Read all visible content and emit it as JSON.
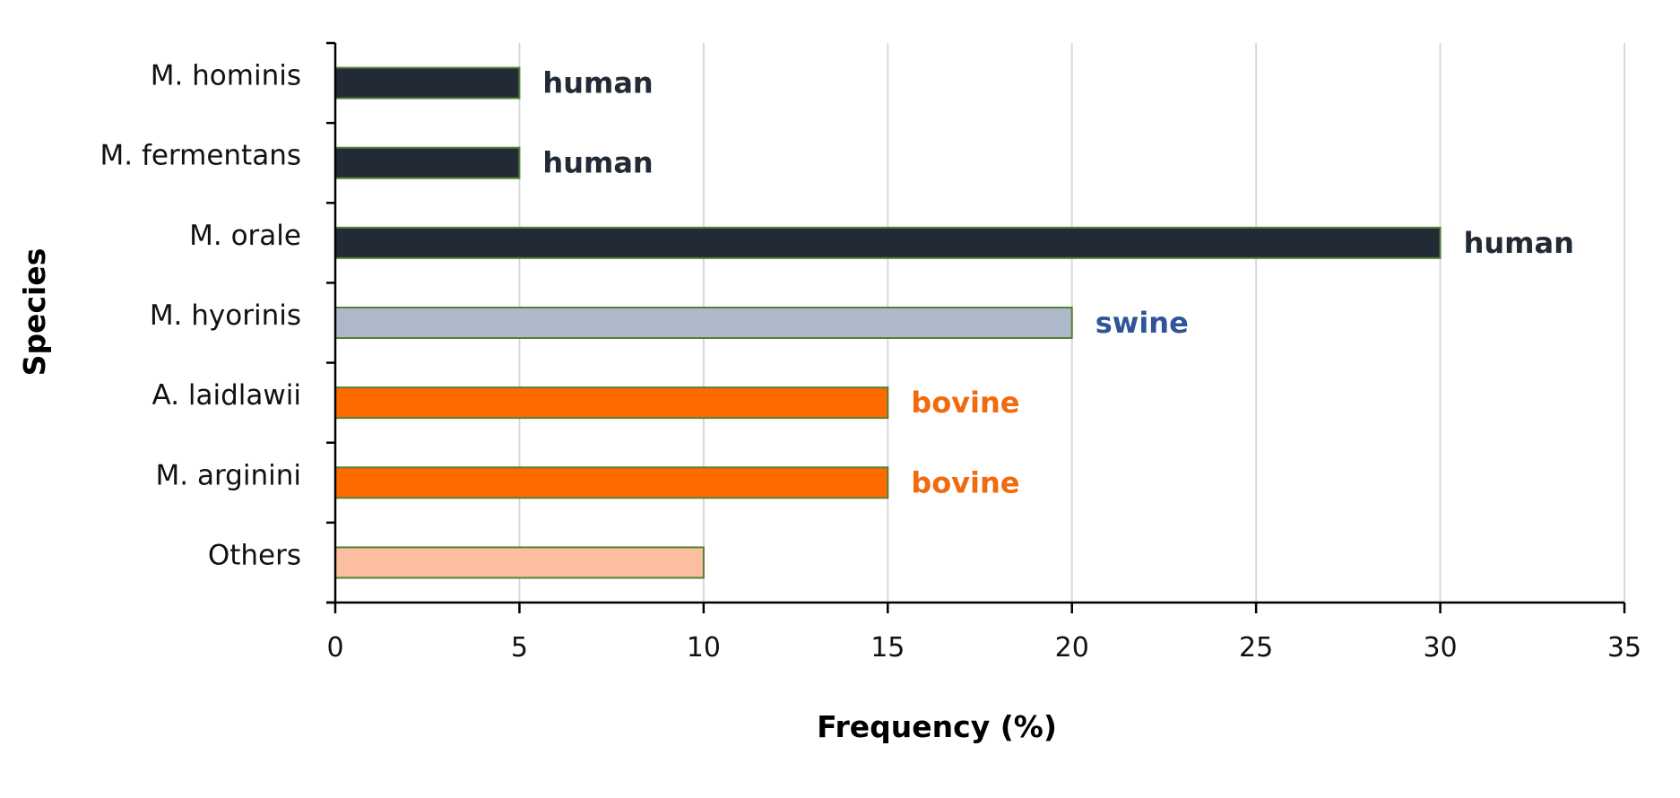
{
  "chart_data": {
    "type": "bar",
    "orientation": "horizontal",
    "title": "",
    "xlabel": "Frequency (%)",
    "ylabel": "Species",
    "xlim": [
      0,
      35
    ],
    "x_ticks": [
      0,
      5,
      10,
      15,
      20,
      25,
      30,
      35
    ],
    "grid": "vertical gridlines",
    "legend": "none",
    "categories": [
      "M. hominis",
      "M. fermentans",
      "M. orale",
      "M. hyorinis",
      "A. laidlawii",
      "M. arginini",
      "Others"
    ],
    "values": [
      5,
      5,
      30,
      20,
      15,
      15,
      10
    ],
    "labels": [
      "human",
      "human",
      "human",
      "swine",
      "bovine",
      "bovine",
      ""
    ],
    "bar_colors": [
      "#222a35",
      "#222a35",
      "#222a35",
      "#adb9ca",
      "#ff6a00",
      "#ff6a00",
      "#fbbf9f"
    ],
    "label_colors": [
      "#222a35",
      "#222a35",
      "#222a35",
      "#2f5597",
      "#f26a0f",
      "#f26a0f",
      "#000000"
    ],
    "bar_outline_color": "#538135",
    "grid_color": "#d9d9d9",
    "axis_color": "#000000"
  }
}
